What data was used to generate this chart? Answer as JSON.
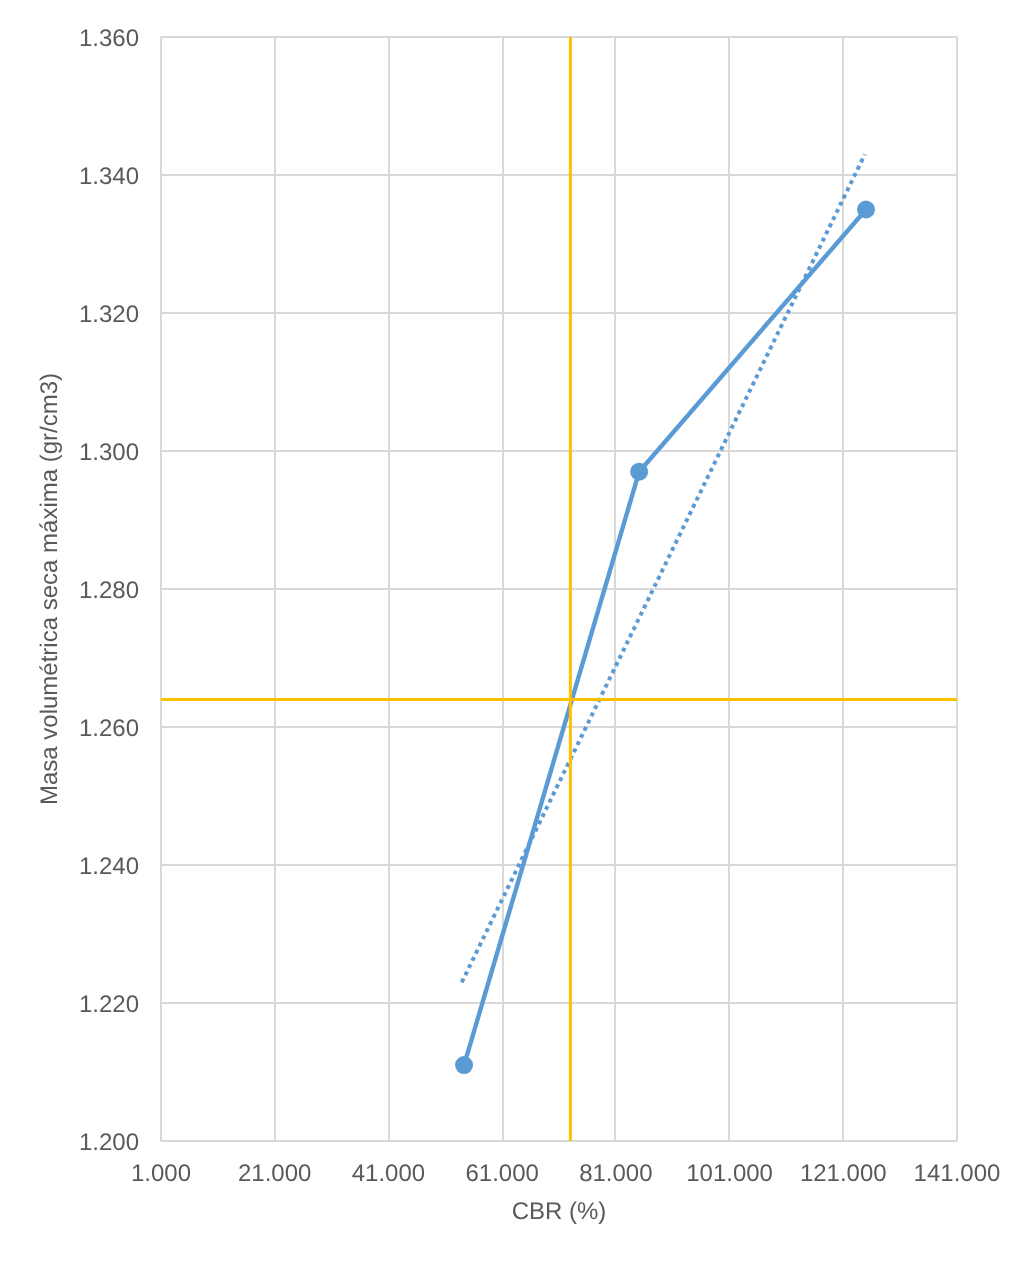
{
  "chart_data": {
    "type": "line",
    "xlabel": "CBR (%)",
    "ylabel": "Masa volumétrica seca máxima (gr/cm3)",
    "xlim": [
      1,
      141
    ],
    "ylim": [
      1.2,
      1.36
    ],
    "xticks": [
      {
        "value": 1,
        "label": "1.000"
      },
      {
        "value": 21,
        "label": "21.000"
      },
      {
        "value": 41,
        "label": "41.000"
      },
      {
        "value": 61,
        "label": "61.000"
      },
      {
        "value": 81,
        "label": "81.000"
      },
      {
        "value": 101,
        "label": "101.000"
      },
      {
        "value": 121,
        "label": "121.000"
      },
      {
        "value": 141,
        "label": "141.000"
      }
    ],
    "yticks": [
      {
        "value": 1.2,
        "label": "1.200"
      },
      {
        "value": 1.22,
        "label": "1.220"
      },
      {
        "value": 1.24,
        "label": "1.240"
      },
      {
        "value": 1.26,
        "label": "1.260"
      },
      {
        "value": 1.28,
        "label": "1.280"
      },
      {
        "value": 1.3,
        "label": "1.300"
      },
      {
        "value": 1.32,
        "label": "1.320"
      },
      {
        "value": 1.34,
        "label": "1.340"
      },
      {
        "value": 1.36,
        "label": "1.360"
      }
    ],
    "grid": true,
    "series": [
      {
        "color": "#5b9bd5",
        "marker": "circle",
        "line_style": "solid",
        "x": [
          54.3,
          85.1,
          125.0
        ],
        "values": [
          1.211,
          1.297,
          1.335
        ]
      },
      {
        "color": "#5b9bd5",
        "marker": "none",
        "line_style": "dotted",
        "x": [
          53.9,
          124.8
        ],
        "values": [
          1.223,
          1.343
        ]
      }
    ],
    "ref_lines": [
      {
        "axis": "x",
        "value": 73,
        "color": "#ffc000",
        "line_style": "solid"
      },
      {
        "axis": "y",
        "value": 1.264,
        "color": "#ffc000",
        "line_style": "solid"
      }
    ]
  }
}
